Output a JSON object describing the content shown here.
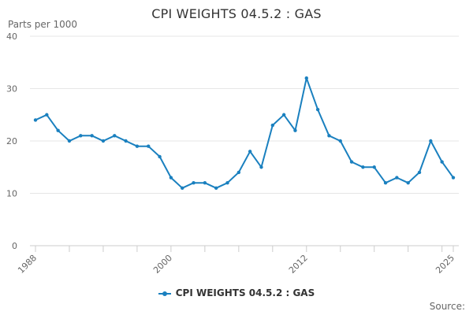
{
  "chart_data": {
    "type": "line",
    "title": "CPI WEIGHTS 04.5.2 : GAS",
    "ylabel": "Parts per 1000",
    "xlabel": "",
    "ylim": [
      0,
      40
    ],
    "yticks": [
      "0",
      "10",
      "20",
      "30",
      "40"
    ],
    "xticks": [
      "1988",
      "2000",
      "2012",
      "2025"
    ],
    "x": [
      1988,
      1989,
      1990,
      1991,
      1992,
      1993,
      1994,
      1995,
      1996,
      1997,
      1998,
      1999,
      2000,
      2001,
      2002,
      2003,
      2004,
      2005,
      2006,
      2007,
      2008,
      2009,
      2010,
      2011,
      2012,
      2013,
      2014,
      2015,
      2016,
      2017,
      2018,
      2019,
      2020,
      2021,
      2022,
      2023,
      2024,
      2025
    ],
    "series": [
      {
        "name": "CPI WEIGHTS 04.5.2 : GAS",
        "color": "#1a80bf",
        "values": [
          24,
          25,
          22,
          20,
          21,
          21,
          20,
          21,
          20,
          19,
          19,
          17,
          13,
          11,
          12,
          12,
          11,
          12,
          14,
          18,
          15,
          23,
          25,
          22,
          32,
          26,
          21,
          20,
          16,
          15,
          15,
          12,
          13,
          12,
          14,
          20,
          16,
          13
        ]
      }
    ],
    "grid": true,
    "legend_position": "bottom-center"
  },
  "source_label": "Source:"
}
